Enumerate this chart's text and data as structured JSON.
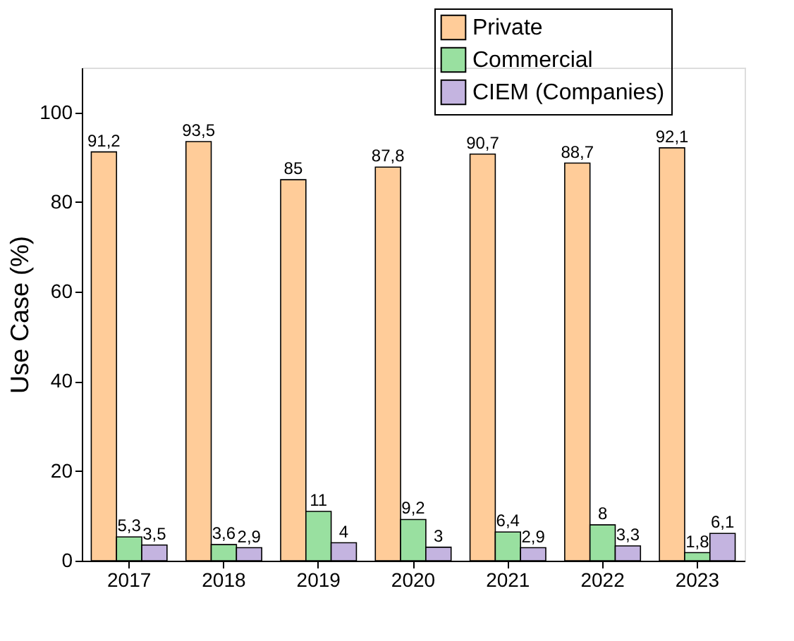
{
  "chart_data": {
    "type": "bar",
    "ylabel": "Use Case (%)",
    "categories": [
      "2017",
      "2018",
      "2019",
      "2020",
      "2021",
      "2022",
      "2023"
    ],
    "series": [
      {
        "name": "Private",
        "color": "#ffcc99",
        "values": [
          91.2,
          93.5,
          85,
          87.8,
          90.7,
          88.7,
          92.1
        ],
        "value_labels": [
          "91,2",
          "93,5",
          "85",
          "87,8",
          "90,7",
          "88,7",
          "92,1"
        ]
      },
      {
        "name": "Commercial",
        "color": "#99e0a0",
        "values": [
          5.3,
          3.6,
          11,
          9.2,
          6.4,
          8,
          1.8
        ],
        "value_labels": [
          "5,3",
          "3,6",
          "11",
          "9,2",
          "6,4",
          "8",
          "1,8"
        ]
      },
      {
        "name": "CIEM (Companies)",
        "color": "#c4b4e0",
        "values": [
          3.5,
          2.9,
          4,
          3,
          2.9,
          3.3,
          6.1
        ],
        "value_labels": [
          "3,5",
          "2,9",
          "4",
          "3",
          "2,9",
          "3,3",
          "6,1"
        ]
      }
    ],
    "ylim": [
      0,
      110
    ],
    "yticks": [
      0,
      20,
      40,
      60,
      80,
      100
    ],
    "grid": false,
    "legend": "top right"
  }
}
